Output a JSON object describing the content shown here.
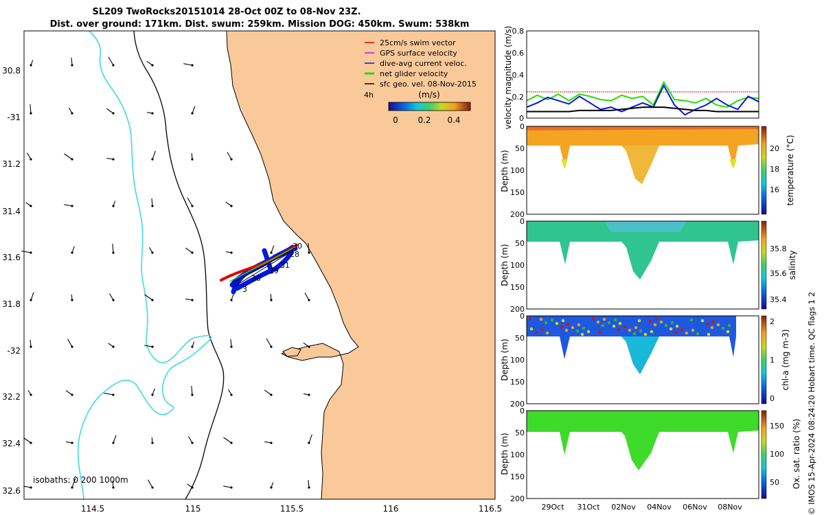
{
  "title": {
    "line1": "SL209 TwoRocks20151014 28-Oct 00Z to 08-Nov 23Z.",
    "line2": "Dist. over ground: 171km. Dist. swum: 259km. Mission DOG: 450km. Swum: 538km"
  },
  "colors": {
    "land": "#f9c99a",
    "isobath_0": "#000000",
    "isobath_200": "#000000",
    "isobath_1000": "#3fd9e6",
    "swim": "#e00000",
    "gps": "#e000e0",
    "current": "#0018e0",
    "net": "#22e000",
    "sfc": "#000000"
  },
  "map": {
    "lat_ticks": [
      "30.8",
      "-31",
      "31.2",
      "31.4",
      "31.6",
      "31.8",
      "-32",
      "32.2",
      "32.4",
      "32.6"
    ],
    "lon_ticks": [
      "114.5",
      "115",
      "115.5",
      "116",
      "116.5"
    ],
    "isobath_label": "isobaths: 0   200  1000m",
    "legend": [
      {
        "label": "25cm/s swim vector",
        "color": "#e00000"
      },
      {
        "label": "GPS surface velocity",
        "color": "#e000e0"
      },
      {
        "label": "dive-avg current veloc.",
        "color": "#0018e0"
      },
      {
        "label": "net glider velocity",
        "color": "#22e000"
      },
      {
        "label": "sfc geo. vel. 08-Nov-2015",
        "color": "#000000"
      }
    ],
    "track_labels": [
      "30",
      "28",
      "31",
      "29",
      "30",
      "3"
    ],
    "interval_label": "4h",
    "colorbar": {
      "unit": "(m/s)",
      "ticks": [
        "0",
        "0.2",
        "0.4"
      ]
    }
  },
  "chart_data": [
    {
      "type": "line",
      "ylabel": "velocity magnitude (m/s)",
      "ylim": [
        0,
        0.8
      ],
      "yticks": [
        "0",
        "0.2",
        "0.4",
        "0.6",
        "0.8"
      ],
      "series": [
        {
          "color": "#e00000",
          "values": [
            0.24,
            0.24,
            0.24,
            0.24,
            0.24,
            0.24,
            0.24,
            0.24,
            0.24,
            0.24,
            0.24,
            0.24,
            0.24,
            0.24,
            0.24,
            0.24,
            0.24,
            0.24,
            0.24,
            0.24,
            0.24,
            0.24,
            0.24
          ]
        },
        {
          "color": "#22e000",
          "values": [
            0.16,
            0.21,
            0.17,
            0.22,
            0.16,
            0.22,
            0.2,
            0.17,
            0.16,
            0.21,
            0.18,
            0.2,
            0.12,
            0.33,
            0.17,
            0.16,
            0.14,
            0.18,
            0.12,
            0.1,
            0.16,
            0.19,
            0.18
          ]
        },
        {
          "color": "#0018e0",
          "values": [
            0.1,
            0.14,
            0.19,
            0.16,
            0.13,
            0.2,
            0.14,
            0.08,
            0.1,
            0.06,
            0.1,
            0.14,
            0.1,
            0.3,
            0.12,
            0.03,
            0.08,
            0.12,
            0.18,
            0.12,
            0.08,
            0.2,
            0.15
          ]
        },
        {
          "color": "#000000",
          "values": [
            0.06,
            0.06,
            0.06,
            0.06,
            0.06,
            0.07,
            0.07,
            0.07,
            0.07,
            0.08,
            0.09,
            0.1,
            0.1,
            0.1,
            0.09,
            0.08,
            0.07,
            0.07,
            0.06,
            0.06,
            0.06,
            0.06,
            0.06
          ]
        }
      ]
    },
    {
      "type": "heatmap",
      "ylabel": "Depth (m)",
      "clabel": "temperature (°C)",
      "cticks": [
        "16",
        "18",
        "20"
      ],
      "yticks": [
        "0",
        "50",
        "100",
        "150",
        "200"
      ]
    },
    {
      "type": "heatmap",
      "ylabel": "Depth (m)",
      "clabel": "salinity",
      "cticks": [
        "35.4",
        "35.6",
        "35.8"
      ],
      "yticks": [
        "0",
        "50",
        "100",
        "150",
        "200"
      ]
    },
    {
      "type": "heatmap",
      "ylabel": "Depth (m)",
      "clabel": "chl-a (mg m-3)",
      "cticks": [
        "0",
        "1",
        "2"
      ],
      "yticks": [
        "0",
        "50",
        "100",
        "150",
        "200"
      ]
    },
    {
      "type": "heatmap",
      "ylabel": "Depth (m)",
      "clabel": "Ox. sat. ratio (%)",
      "cticks": [
        "50",
        "100",
        "150"
      ],
      "yticks": [
        "0",
        "50",
        "100",
        "150",
        "200"
      ],
      "xticks": [
        "29Oct",
        "31Oct",
        "02Nov",
        "04Nov",
        "06Nov",
        "08Nov"
      ]
    }
  ],
  "side_note": "© IMOS 15-Apr-2024 08:24:20 Hobart time. QC flags 1  2"
}
